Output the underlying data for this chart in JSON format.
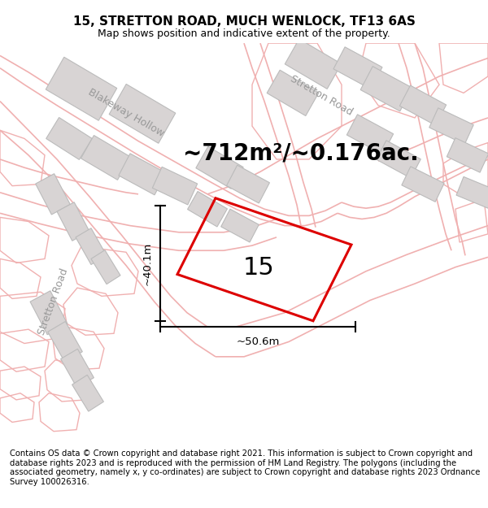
{
  "title": "15, STRETTON ROAD, MUCH WENLOCK, TF13 6AS",
  "subtitle": "Map shows position and indicative extent of the property.",
  "area_text": "~712m²/~0.176ac.",
  "label_number": "15",
  "dim_width": "~50.6m",
  "dim_height": "~40.1m",
  "footer": "Contains OS data © Crown copyright and database right 2021. This information is subject to Crown copyright and database rights 2023 and is reproduced with the permission of HM Land Registry. The polygons (including the associated geometry, namely x, y co-ordinates) are subject to Crown copyright and database rights 2023 Ordnance Survey 100026316.",
  "bg_color": "#ffffff",
  "map_bg": "#ffffff",
  "road_outline_color": "#f0b0b0",
  "road_fill_color": "#ffffff",
  "building_face_color": "#d8d4d4",
  "building_edge_color": "#bbbbbb",
  "property_color": "#dd0000",
  "road_label_color": "#aaaaaa",
  "title_fontsize": 11,
  "subtitle_fontsize": 9,
  "area_fontsize": 20,
  "label_fontsize": 22,
  "footer_fontsize": 7.2,
  "dim_fontsize": 9.5
}
